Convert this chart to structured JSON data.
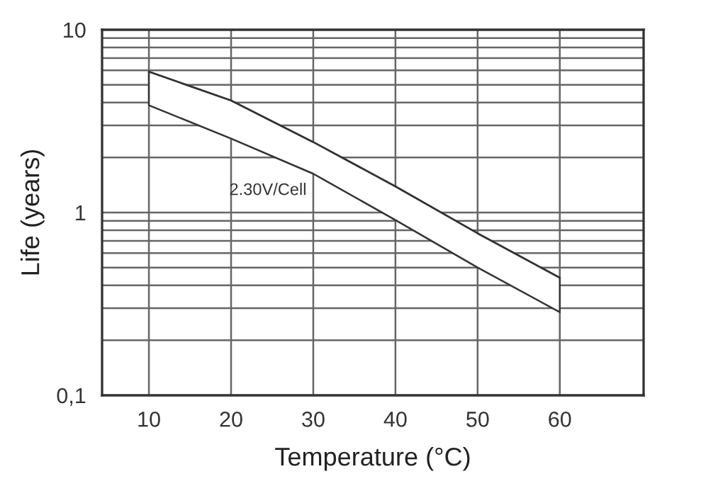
{
  "chart_data": {
    "type": "line",
    "xlabel": "Temperature (°C)",
    "ylabel": "Life (years)",
    "x": [
      10,
      20,
      30,
      40,
      50,
      60
    ],
    "series": [
      {
        "color": "#333333",
        "values": [
          5.9,
          4.1,
          2.43,
          1.39,
          0.77,
          0.44
        ],
        "lower": [
          3.86,
          2.54,
          1.63,
          0.91,
          0.5,
          0.285
        ],
        "upper": [
          5.9,
          4.1,
          2.43,
          1.39,
          0.77,
          0.44
        ]
      }
    ],
    "annotations": [
      "2.30V/Cell"
    ],
    "log": "y",
    "xlim": [
      4.3,
      70.2
    ],
    "ylim": [
      0.1,
      10
    ],
    "xticks": [
      10,
      20,
      30,
      40,
      50,
      60
    ],
    "yticks": [
      {
        "value": 0.1,
        "label": "0,1"
      },
      1,
      10
    ],
    "grid": true
  }
}
